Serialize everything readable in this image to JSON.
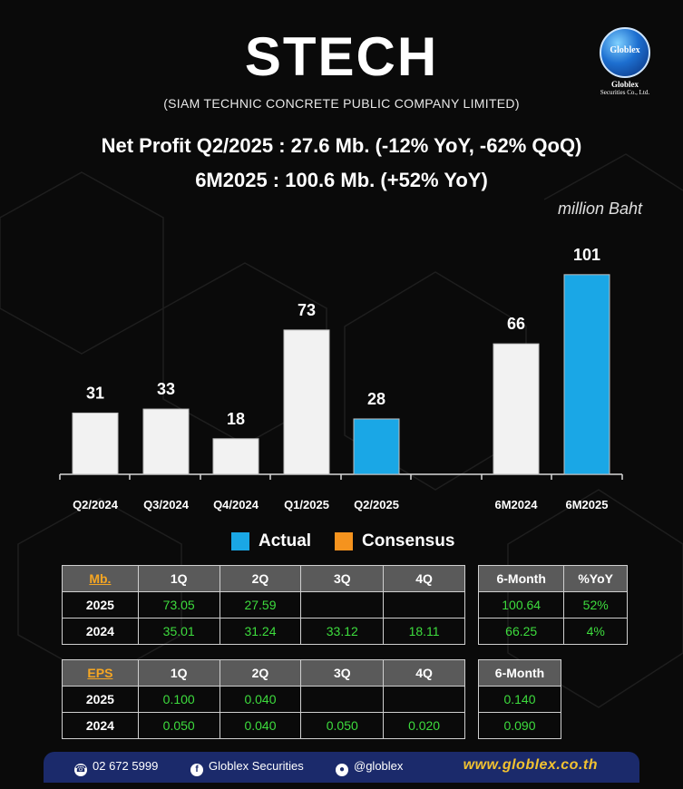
{
  "header": {
    "ticker": "STECH",
    "company": "(SIAM TECHNIC CONCRETE PUBLIC COMPANY LIMITED)",
    "headline_1": "Net Profit  Q2/2025 : 27.6 Mb. (-12% YoY, -62% QoQ)",
    "headline_2": "6M2025 : 100.6 Mb. (+52% YoY)",
    "unit": "million Baht"
  },
  "logo": {
    "word": "Globlex",
    "name": "Globlex",
    "sub": "Securities Co., Ltd."
  },
  "colors": {
    "actual": "#1aa7e6",
    "consensus": "#f5931e",
    "bar": "#f2f2f2",
    "value_green": "#3ddc3d",
    "header_orange": "#f5a623"
  },
  "chart_data": {
    "type": "bar",
    "title": "",
    "xlabel": "",
    "ylabel": "",
    "ylim": [
      0,
      110
    ],
    "groups": [
      {
        "categories": [
          "Q2/2024",
          "Q3/2024",
          "Q4/2024",
          "Q1/2025",
          "Q2/2025"
        ],
        "values": [
          31,
          33,
          18,
          73,
          28
        ],
        "labels": [
          "31",
          "33",
          "18",
          "73",
          "28"
        ],
        "highlight": [
          false,
          false,
          false,
          false,
          true
        ]
      },
      {
        "categories": [
          "6M2024",
          "6M2025"
        ],
        "values": [
          66,
          101
        ],
        "labels": [
          "66",
          "101"
        ],
        "highlight": [
          false,
          true
        ]
      }
    ],
    "legend": [
      "Actual",
      "Consensus"
    ],
    "legend_position": "bottom"
  },
  "profit_table": {
    "key": "Mb.",
    "quarters": [
      "1Q",
      "2Q",
      "3Q",
      "4Q"
    ],
    "rows": [
      {
        "year": "2025",
        "q": [
          "73.05",
          "27.59",
          "",
          ""
        ]
      },
      {
        "year": "2024",
        "q": [
          "35.01",
          "31.24",
          "33.12",
          "18.11"
        ]
      }
    ]
  },
  "profit_side": {
    "headers": [
      "6-Month",
      "%YoY"
    ],
    "rows": [
      [
        "100.64",
        "52%"
      ],
      [
        "66.25",
        "4%"
      ]
    ]
  },
  "eps_table": {
    "key": "EPS",
    "quarters": [
      "1Q",
      "2Q",
      "3Q",
      "4Q"
    ],
    "rows": [
      {
        "year": "2025",
        "q": [
          "0.100",
          "0.040",
          "",
          ""
        ]
      },
      {
        "year": "2024",
        "q": [
          "0.050",
          "0.040",
          "0.050",
          "0.020"
        ]
      }
    ]
  },
  "eps_side": {
    "headers": [
      "6-Month"
    ],
    "rows": [
      [
        "0.140"
      ],
      [
        "0.090"
      ]
    ]
  },
  "footer": {
    "phone": "02 672 5999",
    "facebook": "Globlex Securities",
    "line": "@globlex",
    "website": "www.globlex.co.th",
    "phone_icon": "phone-icon",
    "facebook_icon": "facebook-icon",
    "line_icon": "line-icon"
  }
}
